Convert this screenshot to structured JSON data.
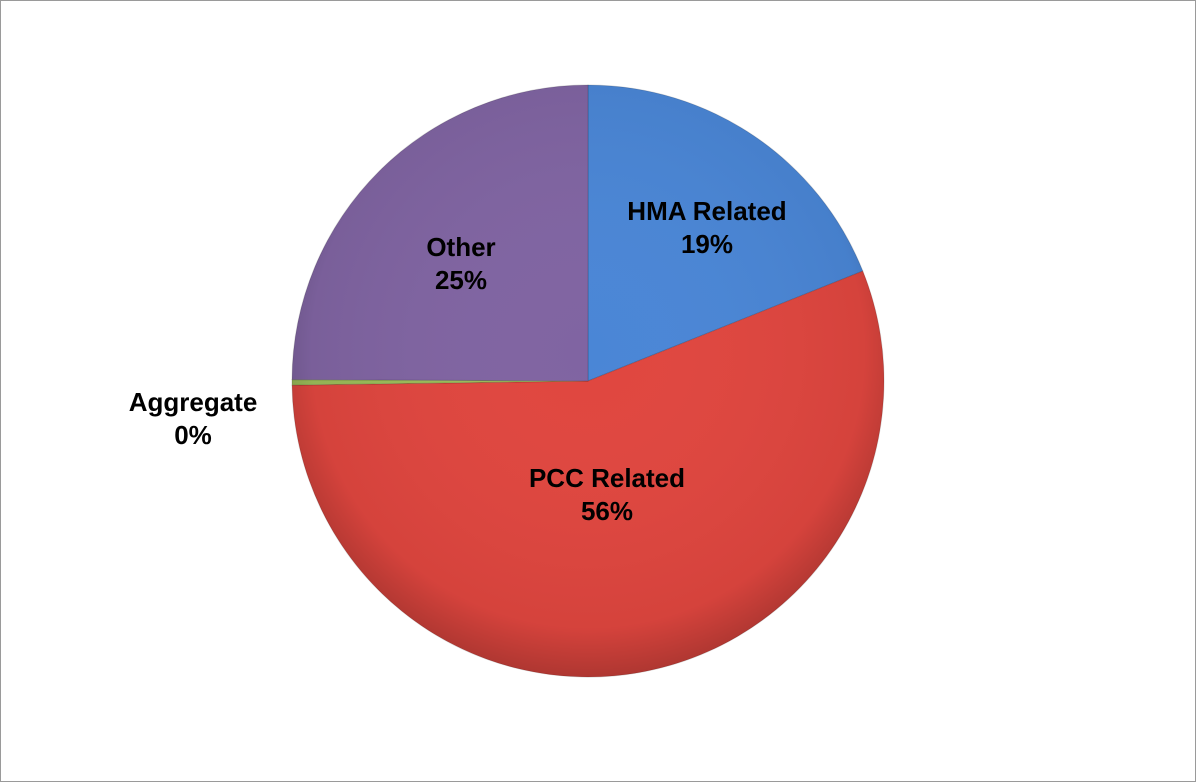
{
  "chart_data": {
    "type": "pie",
    "categories": [
      "HMA Related",
      "PCC Related",
      "Aggregate",
      "Other"
    ],
    "values": [
      19,
      56,
      0.3,
      25
    ],
    "value_labels": [
      "19%",
      "56%",
      "0%",
      "25%"
    ],
    "colors": [
      "#4a86d6",
      "#e0463f",
      "#9bbb59",
      "#8064a2"
    ]
  }
}
